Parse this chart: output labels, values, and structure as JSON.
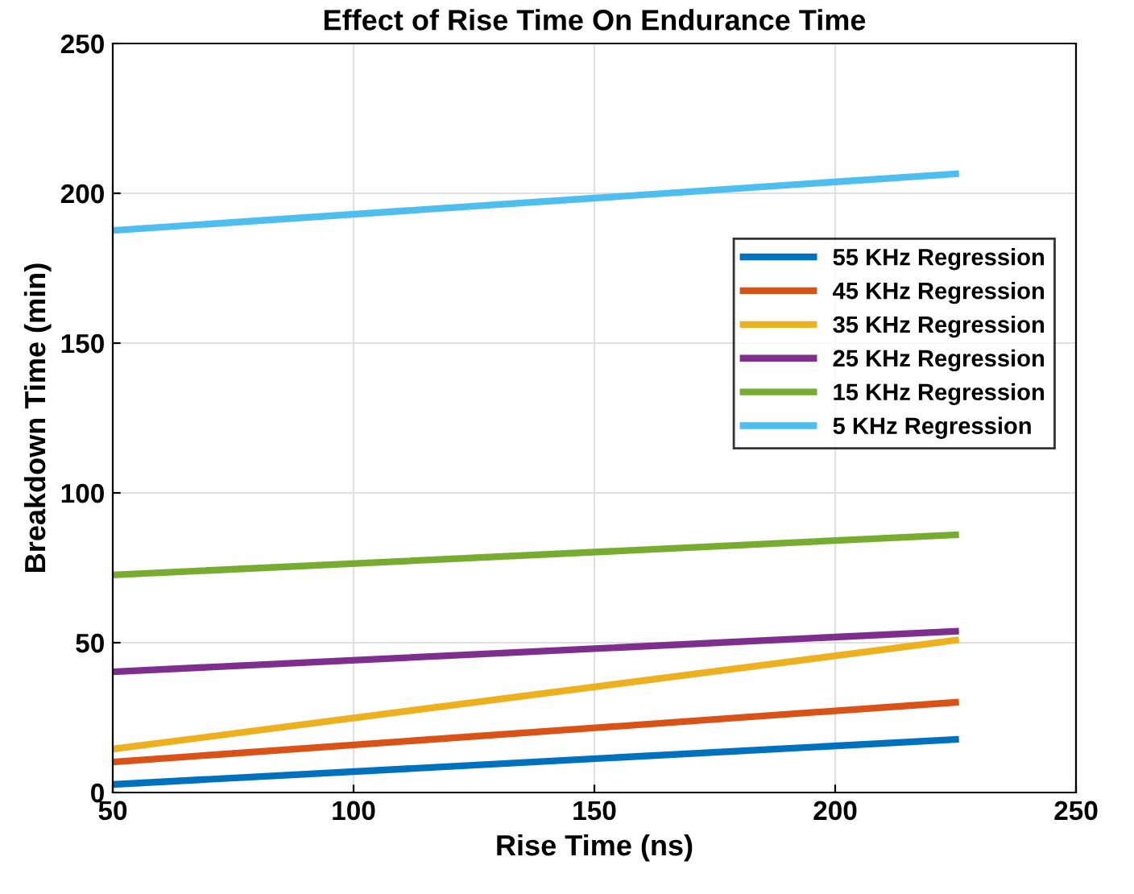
{
  "chart_data": {
    "type": "line",
    "title": "Effect of Rise Time On Endurance Time",
    "xlabel": "Rise Time (ns)",
    "ylabel": "Breakdown Time (min)",
    "x": [
      50,
      225
    ],
    "xlim": [
      50,
      250
    ],
    "xticks": [
      50,
      100,
      150,
      200,
      250
    ],
    "ylim": [
      0,
      250
    ],
    "yticks": [
      0,
      50,
      100,
      150,
      200,
      250
    ],
    "grid": true,
    "legend": "right",
    "marker": "none",
    "line_style": "solid",
    "series": [
      {
        "name": "55 KHz Regression",
        "color": "#0072bd",
        "values": [
          2.7,
          17.7
        ]
      },
      {
        "name": "45 KHz Regression",
        "color": "#d95319",
        "values": [
          10.2,
          30.1
        ]
      },
      {
        "name": "35 KHz Regression",
        "color": "#edb120",
        "values": [
          14.5,
          50.8
        ]
      },
      {
        "name": "25 KHz Regression",
        "color": "#7e2f8e",
        "values": [
          40.3,
          53.8
        ]
      },
      {
        "name": "15 KHz Regression",
        "color": "#77ac30",
        "values": [
          72.6,
          86
        ]
      },
      {
        "name": "5 KHz Regression",
        "color": "#4dbeee",
        "values": [
          187.6,
          206.5
        ]
      }
    ]
  }
}
